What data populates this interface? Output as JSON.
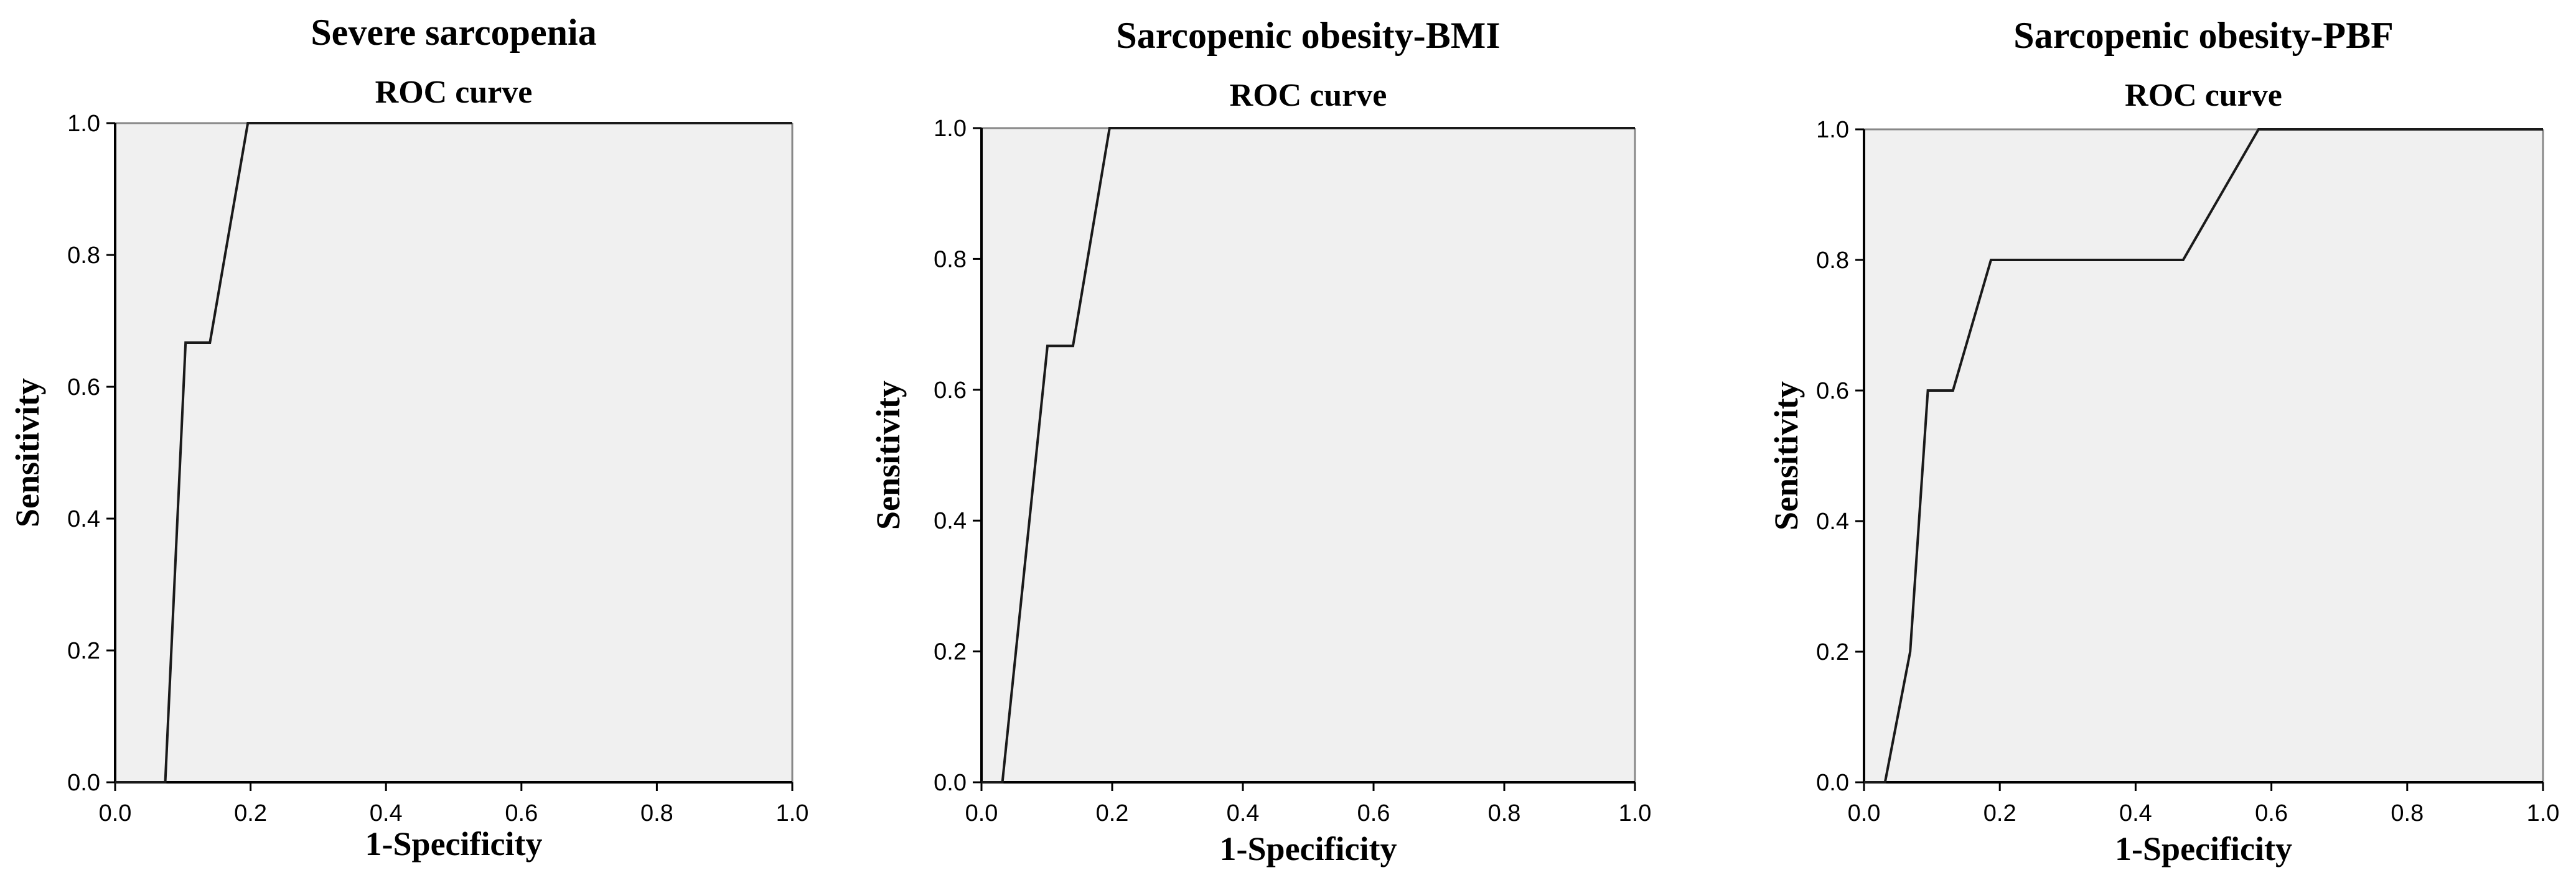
{
  "colors": {
    "plot_background": "#f0f0f0",
    "axis": "#000000",
    "frame": "#888888",
    "curve": "#1a1a1a",
    "text": "#000000"
  },
  "chart_data": [
    {
      "type": "line",
      "title": "Severe sarcopenia",
      "subtitle": "ROC curve",
      "xlabel": "1-Specificity",
      "ylabel": "Sensitivity",
      "xlim": [
        0,
        1
      ],
      "ylim": [
        0,
        1
      ],
      "xticks": [
        "0.0",
        "0.2",
        "0.4",
        "0.6",
        "0.8",
        "1.0"
      ],
      "yticks": [
        "0.0",
        "0.2",
        "0.4",
        "0.6",
        "0.8",
        "1.0"
      ],
      "grid": false,
      "series": [
        {
          "x": [
            0.0,
            0.074,
            0.104,
            0.14,
            0.196,
            1.0
          ],
          "y": [
            0.0,
            0.0,
            0.667,
            0.667,
            1.0,
            1.0
          ]
        }
      ]
    },
    {
      "type": "line",
      "title": "Sarcopenic obesity-BMI",
      "subtitle": "ROC curve",
      "xlabel": "1-Specificity",
      "ylabel": "Sensitivity",
      "xlim": [
        0,
        1
      ],
      "ylim": [
        0,
        1
      ],
      "xticks": [
        "0.0",
        "0.2",
        "0.4",
        "0.6",
        "0.8",
        "1.0"
      ],
      "yticks": [
        "0.0",
        "0.2",
        "0.4",
        "0.6",
        "0.8",
        "1.0"
      ],
      "grid": false,
      "series": [
        {
          "x": [
            0.0,
            0.032,
            0.101,
            0.14,
            0.196,
            1.0
          ],
          "y": [
            0.0,
            0.0,
            0.667,
            0.667,
            1.0,
            1.0
          ]
        }
      ]
    },
    {
      "type": "line",
      "title": "Sarcopenic obesity-PBF",
      "subtitle": "ROC curve",
      "xlabel": "1-Specificity",
      "ylabel": "Sensitivity",
      "xlim": [
        0,
        1
      ],
      "ylim": [
        0,
        1
      ],
      "xticks": [
        "0.0",
        "0.2",
        "0.4",
        "0.6",
        "0.8",
        "1.0"
      ],
      "yticks": [
        "0.0",
        "0.2",
        "0.4",
        "0.6",
        "0.8",
        "1.0"
      ],
      "grid": false,
      "series": [
        {
          "x": [
            0.0,
            0.031,
            0.068,
            0.094,
            0.131,
            0.187,
            0.47,
            0.581,
            1.0
          ],
          "y": [
            0.0,
            0.0,
            0.2,
            0.6,
            0.6,
            0.8,
            0.8,
            1.0,
            1.0
          ]
        }
      ]
    }
  ]
}
